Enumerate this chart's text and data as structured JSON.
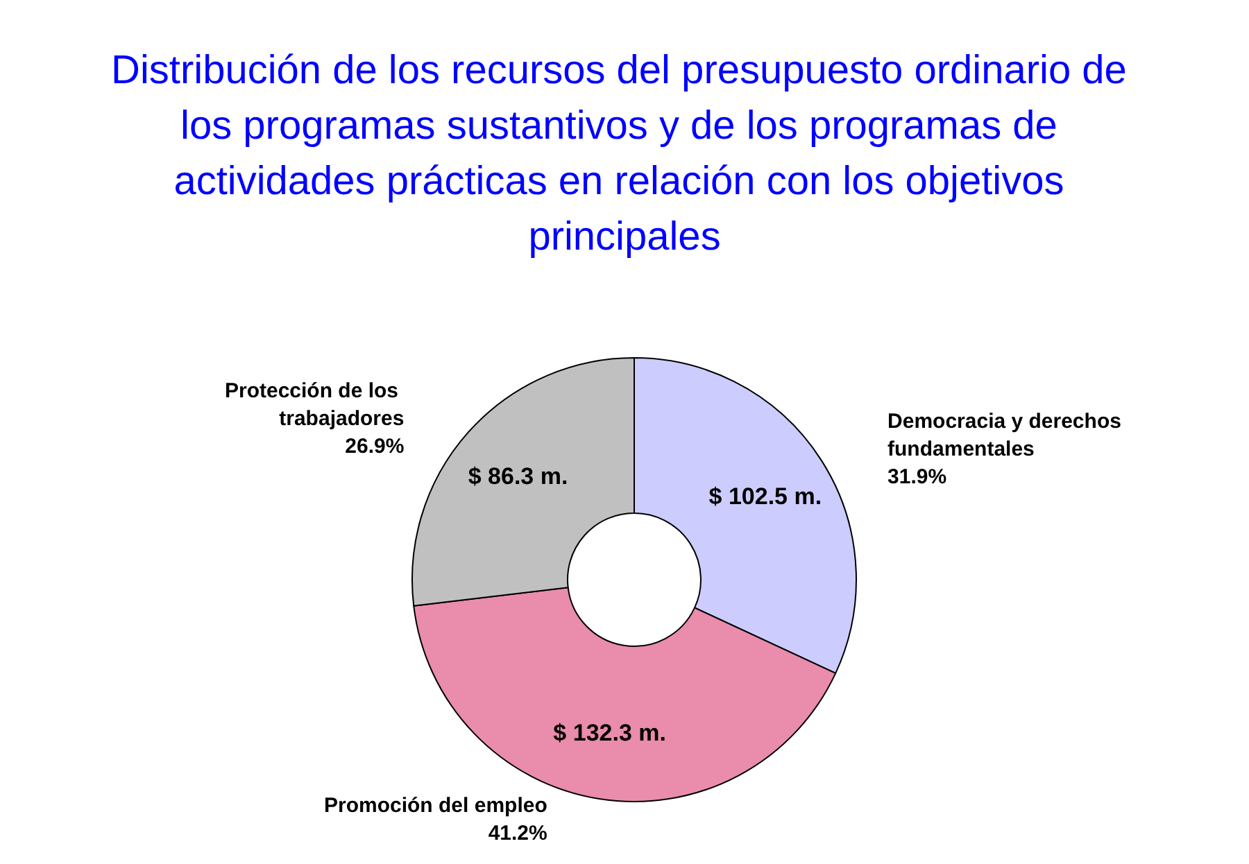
{
  "chart_data": {
    "type": "donut",
    "title": "Distribución de los recursos del presupuesto ordinario de los programas sustantivos y de los programas de actividades prácticas en relación con los objetivos principales",
    "categories": [
      "Democracia y derechos fundamentales",
      "Promoción del empleo",
      "Protección de los trabajadores"
    ],
    "values": [
      102.5,
      132.3,
      86.3
    ],
    "value_labels": [
      "$ 102.5 m.",
      "$ 132.3 m.",
      "$ 86.3 m."
    ],
    "annotations": [
      "31.9%",
      "41.2%",
      "26.9%"
    ],
    "colors": [
      "#ccccff",
      "#ea8cac",
      "#c0c0c0"
    ],
    "legend": false
  }
}
